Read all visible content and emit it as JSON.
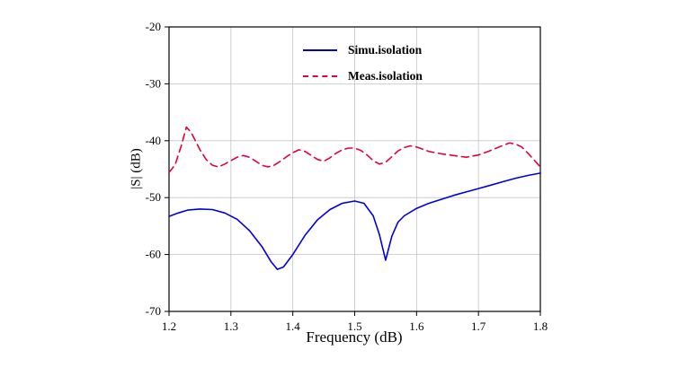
{
  "figure": {
    "background": "#ffffff"
  },
  "chart_data": {
    "type": "line",
    "title": "",
    "xlabel": "Frequency (dB)",
    "ylabel": "|S| (dB)",
    "xlim": [
      1.2,
      1.8
    ],
    "ylim": [
      -70,
      -20
    ],
    "xticks": [
      1.2,
      1.3,
      1.4,
      1.5,
      1.6,
      1.7,
      1.8
    ],
    "xtick_labels": [
      "1.2",
      "1.3",
      "1.4",
      "1.5",
      "1.6",
      "1.7",
      "1.8"
    ],
    "yticks": [
      -20,
      -30,
      -40,
      -50,
      -60,
      -70
    ],
    "ytick_labels": [
      "-20",
      "-30",
      "-40",
      "-50",
      "-60",
      "-70"
    ],
    "grid": true,
    "grid_color": "#c3c3c3",
    "legend_position": "top-center-inside",
    "series": [
      {
        "name": "Simu.isolation",
        "color": "#0000dd",
        "line_style": "solid",
        "points": [
          [
            1.2,
            -53.3
          ],
          [
            1.215,
            -52.7
          ],
          [
            1.23,
            -52.2
          ],
          [
            1.25,
            -52.0
          ],
          [
            1.27,
            -52.1
          ],
          [
            1.29,
            -52.7
          ],
          [
            1.31,
            -53.8
          ],
          [
            1.33,
            -55.8
          ],
          [
            1.35,
            -58.6
          ],
          [
            1.365,
            -61.3
          ],
          [
            1.375,
            -62.6
          ],
          [
            1.385,
            -62.2
          ],
          [
            1.4,
            -60.0
          ],
          [
            1.42,
            -56.6
          ],
          [
            1.44,
            -53.9
          ],
          [
            1.46,
            -52.1
          ],
          [
            1.48,
            -51.0
          ],
          [
            1.5,
            -50.6
          ],
          [
            1.515,
            -51.0
          ],
          [
            1.53,
            -53.2
          ],
          [
            1.54,
            -56.5
          ],
          [
            1.55,
            -61.0
          ],
          [
            1.56,
            -56.8
          ],
          [
            1.57,
            -54.3
          ],
          [
            1.58,
            -53.2
          ],
          [
            1.6,
            -51.9
          ],
          [
            1.62,
            -51.0
          ],
          [
            1.64,
            -50.3
          ],
          [
            1.66,
            -49.6
          ],
          [
            1.68,
            -49.0
          ],
          [
            1.7,
            -48.4
          ],
          [
            1.72,
            -47.8
          ],
          [
            1.74,
            -47.2
          ],
          [
            1.76,
            -46.6
          ],
          [
            1.78,
            -46.1
          ],
          [
            1.8,
            -45.7
          ]
        ]
      },
      {
        "name": "Meas.isolation",
        "color": "#e4003c",
        "line_style": "dashed",
        "points": [
          [
            1.2,
            -45.6
          ],
          [
            1.21,
            -44.2
          ],
          [
            1.22,
            -40.8
          ],
          [
            1.228,
            -37.6
          ],
          [
            1.236,
            -38.6
          ],
          [
            1.25,
            -41.6
          ],
          [
            1.26,
            -43.3
          ],
          [
            1.27,
            -44.3
          ],
          [
            1.28,
            -44.6
          ],
          [
            1.29,
            -44.1
          ],
          [
            1.3,
            -43.5
          ],
          [
            1.31,
            -42.9
          ],
          [
            1.32,
            -42.6
          ],
          [
            1.33,
            -42.9
          ],
          [
            1.34,
            -43.6
          ],
          [
            1.35,
            -44.3
          ],
          [
            1.36,
            -44.6
          ],
          [
            1.37,
            -44.3
          ],
          [
            1.38,
            -43.6
          ],
          [
            1.39,
            -42.8
          ],
          [
            1.4,
            -42.1
          ],
          [
            1.41,
            -41.6
          ],
          [
            1.42,
            -41.9
          ],
          [
            1.43,
            -42.6
          ],
          [
            1.44,
            -43.3
          ],
          [
            1.45,
            -43.6
          ],
          [
            1.46,
            -43.0
          ],
          [
            1.47,
            -42.2
          ],
          [
            1.48,
            -41.6
          ],
          [
            1.49,
            -41.3
          ],
          [
            1.5,
            -41.3
          ],
          [
            1.51,
            -41.7
          ],
          [
            1.52,
            -42.5
          ],
          [
            1.53,
            -43.5
          ],
          [
            1.54,
            -44.1
          ],
          [
            1.55,
            -43.8
          ],
          [
            1.56,
            -42.8
          ],
          [
            1.57,
            -41.8
          ],
          [
            1.58,
            -41.2
          ],
          [
            1.59,
            -40.9
          ],
          [
            1.6,
            -41.1
          ],
          [
            1.61,
            -41.5
          ],
          [
            1.62,
            -41.9
          ],
          [
            1.64,
            -42.3
          ],
          [
            1.66,
            -42.6
          ],
          [
            1.68,
            -42.9
          ],
          [
            1.7,
            -42.5
          ],
          [
            1.72,
            -41.7
          ],
          [
            1.74,
            -40.8
          ],
          [
            1.75,
            -40.4
          ],
          [
            1.76,
            -40.6
          ],
          [
            1.77,
            -41.1
          ],
          [
            1.78,
            -42.2
          ],
          [
            1.79,
            -43.4
          ],
          [
            1.8,
            -44.6
          ]
        ]
      }
    ]
  }
}
